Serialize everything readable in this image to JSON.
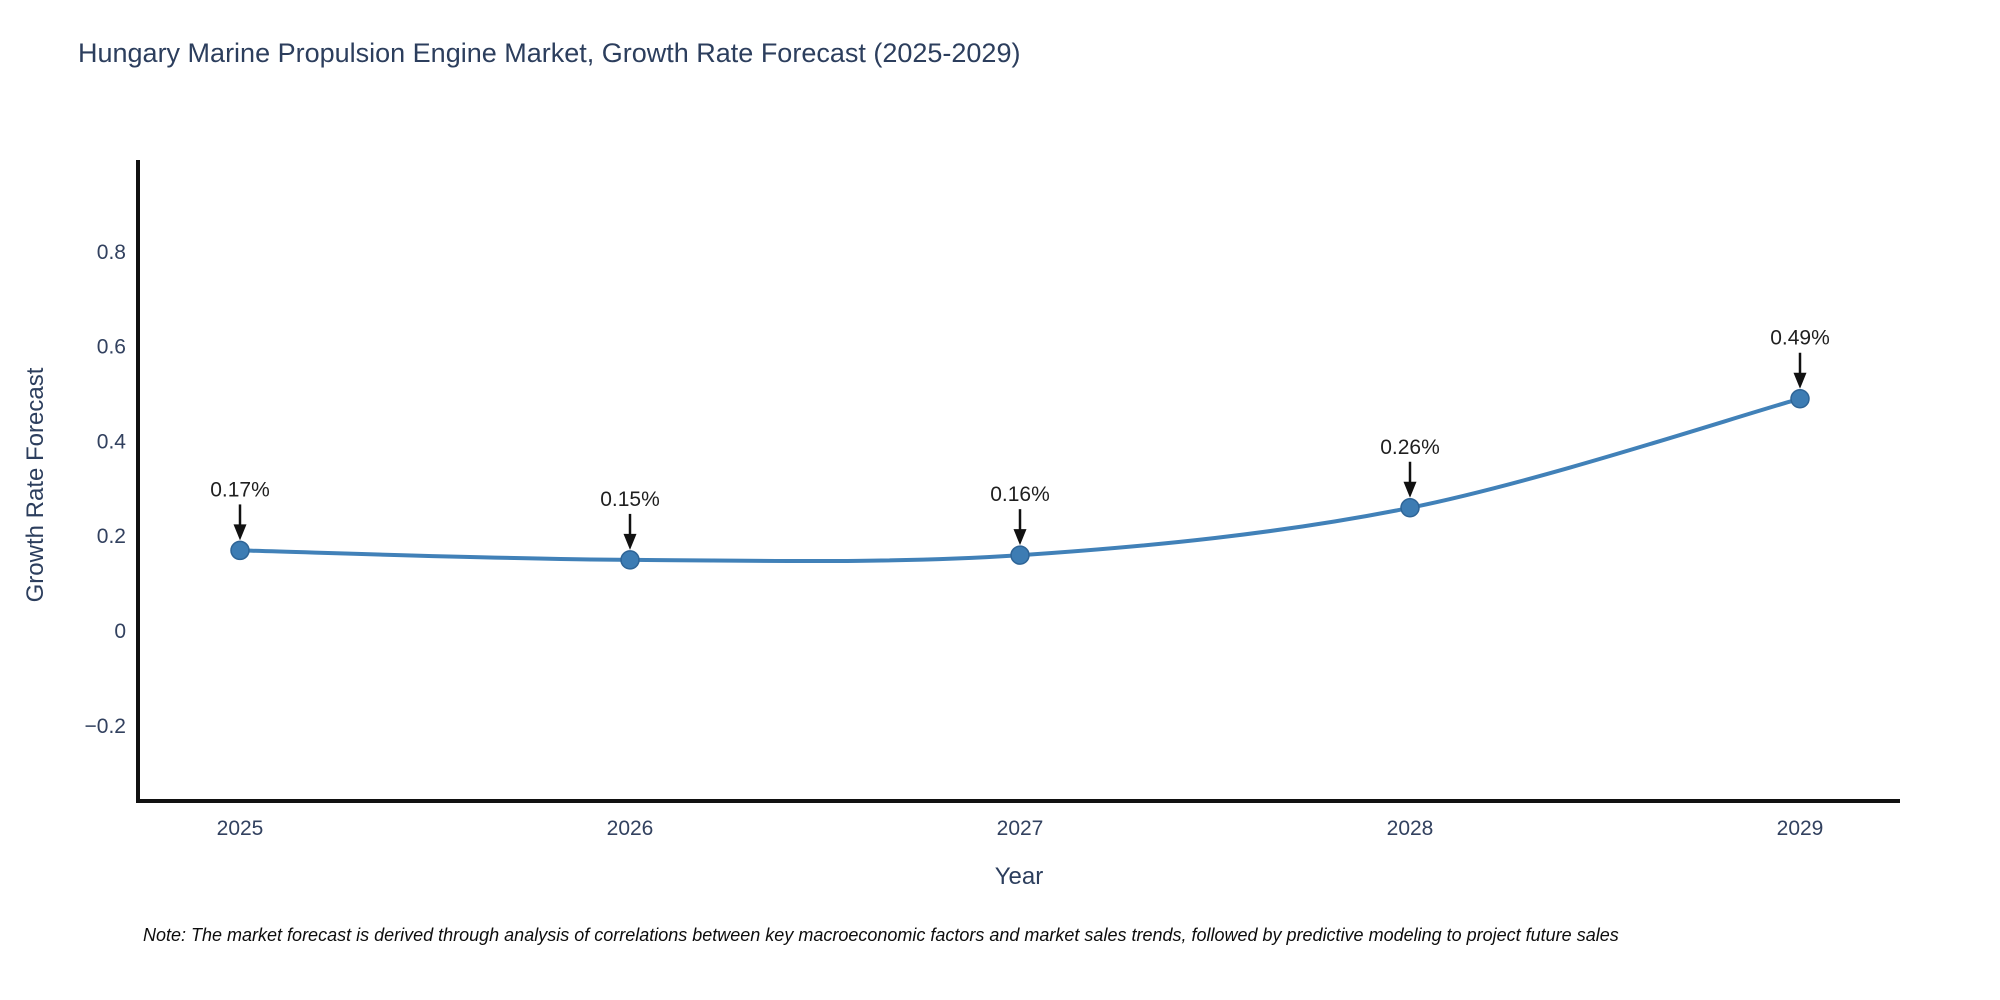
{
  "header": {
    "title": "Hungary Marine Propulsion Engine Market, Growth Rate Forecast (2025-2029)"
  },
  "footnote": {
    "text": "Note: The market forecast is derived through analysis of correlations between key macroeconomic factors and market sales trends, followed by predictive modeling to project future sales"
  },
  "chart_data": {
    "type": "line",
    "title": "Hungary Marine Propulsion Engine Market, Growth Rate Forecast (2025-2029)",
    "x": [
      "2025",
      "2026",
      "2027",
      "2028",
      "2029"
    ],
    "series": [
      {
        "name": "Growth Rate Forecast",
        "values": [
          0.17,
          0.15,
          0.16,
          0.26,
          0.49
        ]
      }
    ],
    "point_labels": [
      "0.17%",
      "0.15%",
      "0.16%",
      "0.26%",
      "0.49%"
    ],
    "xlabel": "Year",
    "ylabel": "Growth Rate Forecast",
    "yticks": [
      {
        "value": -0.2,
        "label": "−0.2"
      },
      {
        "value": 0,
        "label": "0"
      },
      {
        "value": 0.2,
        "label": "0.2"
      },
      {
        "value": 0.4,
        "label": "0.4"
      },
      {
        "value": 0.6,
        "label": "0.6"
      },
      {
        "value": 0.8,
        "label": "0.8"
      }
    ],
    "ylim": [
      -0.36,
      0.99
    ],
    "grid": false,
    "legend": "none",
    "smooth": true,
    "annotation_style": "down-arrow",
    "colors": {
      "line": "#4181b8",
      "marker": "#3d7cb3",
      "marker_edge": "#2e6496",
      "axis": "#111111",
      "tick_text": "#32415f",
      "title_text": "#2c3e5d",
      "annotation_text": "#1f1f1f",
      "arrow": "#111111",
      "background": "#ffffff"
    }
  }
}
